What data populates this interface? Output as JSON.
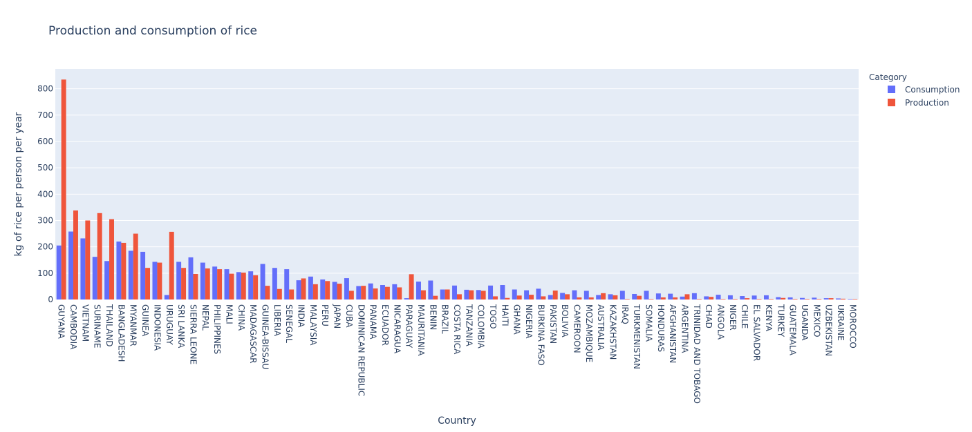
{
  "chart_data": {
    "type": "bar",
    "title": "Production and consumption of rice",
    "xlabel": "Country",
    "ylabel": "kg of rice per person per year",
    "ylim": [
      0,
      875
    ],
    "yticks": [
      0,
      100,
      200,
      300,
      400,
      500,
      600,
      700,
      800
    ],
    "grid": true,
    "legend": {
      "title": "Category",
      "placement": "top-right"
    },
    "categories": [
      "GUYANA",
      "CAMBODIA",
      "VIETNAM",
      "SURINAME",
      "THAILAND",
      "BANGLADESH",
      "MYANMAR",
      "GUINEA",
      "INDONESIA",
      "URUGUAY",
      "SRI LANKA",
      "SIERRA LEONE",
      "NEPAL",
      "PHILIPPINES",
      "MALI",
      "CHINA",
      "MADAGASCAR",
      "GUINEA-BISSAU",
      "LIBERIA",
      "SENEGAL",
      "INDIA",
      "MALAYSIA",
      "PERU",
      "JAPAN",
      "CUBA",
      "DOMINICAN REPUBLIC",
      "PANAMA",
      "ECUADOR",
      "NICARAGUA",
      "PARAGUAY",
      "MAURITANIA",
      "BENIN",
      "BRAZIL",
      "COSTA RICA",
      "TANZANIA",
      "COLOMBIA",
      "TOGO",
      "HAITI",
      "GHANA",
      "NIGERIA",
      "BURKINA FASO",
      "PAKISTAN",
      "BOLIVIA",
      "CAMEROON",
      "MOZAMBIQUE",
      "AUSTRALIA",
      "KAZAKHSTAN",
      "IRAQ",
      "TURKMENISTAN",
      "SOMALIA",
      "HONDURAS",
      "AFGHANISTAN",
      "ARGENTINA",
      "TRINIDAD AND TOBAGO",
      "CHAD",
      "ANGOLA",
      "NIGER",
      "CHILE",
      "EL SALVADOR",
      "KENYA",
      "TURKEY",
      "GUATEMALA",
      "UGANDA",
      "MEXICO",
      "UZBEKISTAN",
      "UKRAINE",
      "MOROCCO"
    ],
    "series": [
      {
        "name": "Consumption",
        "color": "#636efa",
        "values": [
          205,
          258,
          232,
          162,
          146,
          220,
          185,
          181,
          143,
          17,
          143,
          160,
          140,
          125,
          115,
          104,
          107,
          135,
          120,
          115,
          73,
          87,
          76,
          67,
          81,
          51,
          61,
          55,
          58,
          5,
          68,
          72,
          38,
          53,
          37,
          36,
          53,
          55,
          38,
          35,
          41,
          17,
          25,
          35,
          33,
          17,
          20,
          33,
          21,
          33,
          23,
          22,
          11,
          24,
          12,
          18,
          16,
          13,
          15,
          16,
          9,
          8,
          6,
          7,
          5,
          4,
          2
        ]
      },
      {
        "name": "Production",
        "color": "#ef553b",
        "values": [
          835,
          338,
          300,
          328,
          305,
          215,
          250,
          120,
          140,
          257,
          120,
          97,
          118,
          115,
          98,
          102,
          92,
          52,
          40,
          38,
          80,
          58,
          70,
          60,
          33,
          52,
          42,
          48,
          46,
          96,
          35,
          14,
          38,
          20,
          35,
          33,
          12,
          6,
          15,
          18,
          12,
          34,
          20,
          8,
          8,
          24,
          16,
          2,
          14,
          2,
          8,
          8,
          20,
          2,
          10,
          2,
          2,
          5,
          2,
          2,
          6,
          2,
          2,
          2,
          5,
          3,
          2
        ]
      }
    ]
  }
}
